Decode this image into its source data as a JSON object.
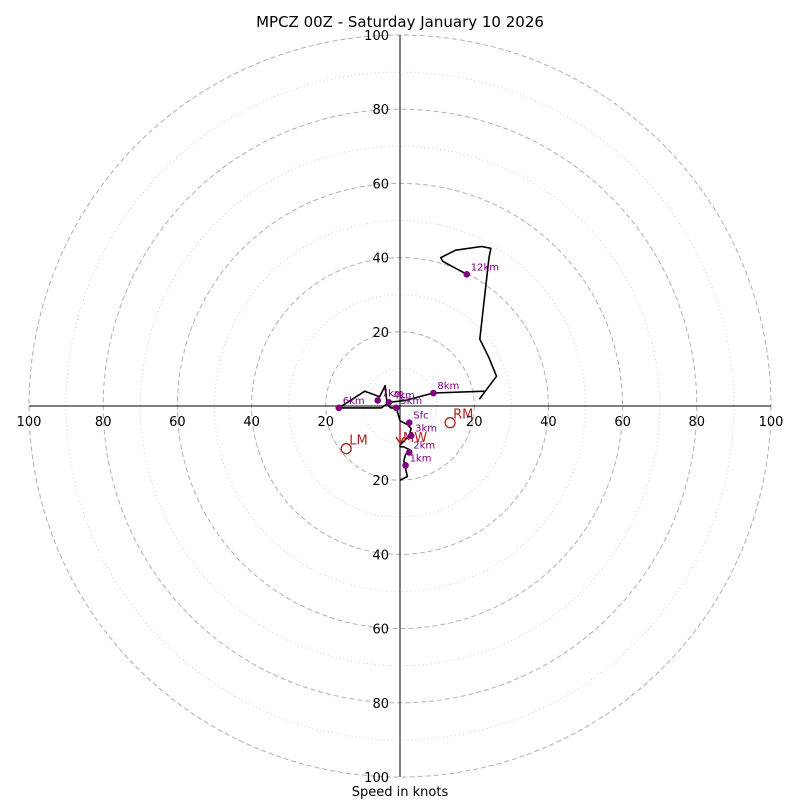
{
  "chart_data": {
    "type": "hodograph",
    "title": "MPCZ 00Z - Saturday January 10 2026",
    "xlabel": "Speed in knots",
    "units": "knots",
    "max_speed": 100,
    "ring_major": [
      20,
      40,
      60,
      80,
      100
    ],
    "ring_minor": [
      10,
      30,
      50,
      70,
      90
    ],
    "tick_labels": [
      "20",
      "40",
      "60",
      "80",
      "100"
    ],
    "hodograph_trace": [
      [
        0,
        -20
      ],
      [
        2,
        -19
      ],
      [
        1.5,
        -17
      ],
      [
        2,
        -16
      ],
      [
        1,
        -15
      ],
      [
        1.5,
        -13
      ],
      [
        2.5,
        -12.5
      ],
      [
        3,
        -12
      ],
      [
        1,
        -11
      ],
      [
        0,
        -11
      ],
      [
        0,
        -10.5
      ],
      [
        0.5,
        -10
      ],
      [
        1,
        -9.5
      ],
      [
        2.5,
        -8
      ],
      [
        3,
        -6
      ],
      [
        2,
        -5
      ],
      [
        0,
        -4
      ],
      [
        -1,
        -0.5
      ],
      [
        -2.5,
        -0.5
      ],
      [
        -3.5,
        0.5
      ],
      [
        -4,
        5.5
      ],
      [
        -5.5,
        2.5
      ],
      [
        -9.5,
        4
      ],
      [
        -16.5,
        -0.5
      ],
      [
        -9,
        -0.5
      ],
      [
        -5,
        -0.5
      ],
      [
        -3,
        1
      ],
      [
        1.5,
        1.5
      ],
      [
        9,
        3.5
      ],
      [
        23,
        4
      ],
      [
        21.5,
        2
      ],
      [
        23,
        4
      ],
      [
        26,
        8
      ],
      [
        24,
        13
      ],
      [
        21.5,
        18
      ],
      [
        24,
        40
      ],
      [
        24.5,
        42.5
      ],
      [
        22,
        43
      ],
      [
        15,
        42
      ],
      [
        11,
        40
      ],
      [
        11.5,
        39
      ],
      [
        18,
        35.5
      ]
    ],
    "height_points": [
      {
        "label": "Sfc",
        "u": 2.5,
        "v": -4.5
      },
      {
        "label": "1km",
        "u": 1.5,
        "v": -16
      },
      {
        "label": "2km",
        "u": 2.5,
        "v": -12.5
      },
      {
        "label": "3km",
        "u": 3,
        "v": -8
      },
      {
        "label": "4km",
        "u": -3,
        "v": 1
      },
      {
        "label": "5km",
        "u": -1,
        "v": -0.5
      },
      {
        "label": "6km",
        "u": -16.5,
        "v": -0.5
      },
      {
        "label": "7km",
        "u": -6,
        "v": 1.5
      },
      {
        "label": "8km",
        "u": 9,
        "v": 3.5
      },
      {
        "label": "12km",
        "u": 18,
        "v": 35.5
      }
    ],
    "storm_motions": [
      {
        "label": "RM",
        "u": 13.5,
        "v": -4.5
      },
      {
        "label": "LM",
        "u": -14.5,
        "v": -11.5
      },
      {
        "label": "MW",
        "u": 0,
        "v": -10
      }
    ],
    "colors": {
      "trace": "#000000",
      "points": "#800080",
      "labels": "#800080",
      "motion": "#b22222",
      "grid": "#b0b0b0"
    }
  }
}
